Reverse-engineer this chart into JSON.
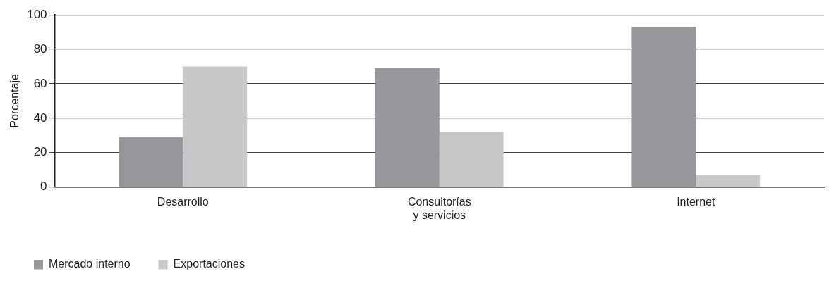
{
  "chart_data": {
    "type": "bar",
    "ylabel": "Porcentaje",
    "categories": [
      "Desarrollo",
      "Consultorías\ny servicios",
      "Internet"
    ],
    "series": [
      {
        "name": "Mercado interno",
        "color": "#97989c",
        "values": [
          29,
          69,
          93
        ]
      },
      {
        "name": "Exportaciones",
        "color": "#c7c8ca",
        "values": [
          70,
          32,
          7
        ]
      }
    ],
    "ylim": [
      0,
      100
    ],
    "yticks": [
      0,
      20,
      40,
      60,
      80,
      100
    ],
    "grid": "y",
    "legend": "bottom left"
  }
}
